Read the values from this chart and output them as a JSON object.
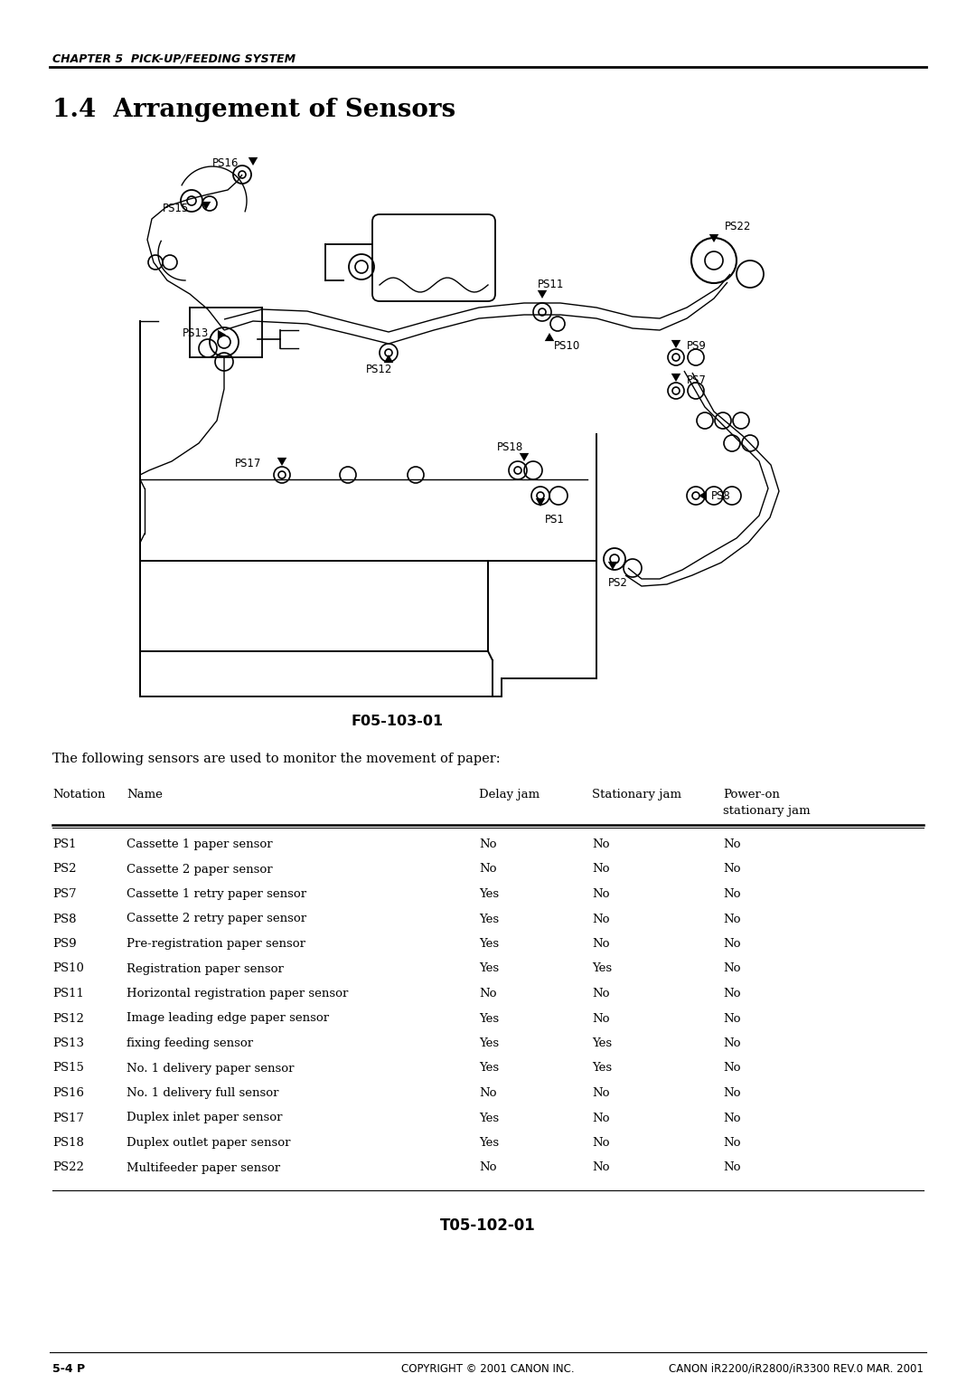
{
  "page_header": "CHAPTER 5  PICK-UP/FEEDING SYSTEM",
  "section_title": "1.4  Arrangement of Sensors",
  "diagram_label": "F05-103-01",
  "intro_text": "The following sensors are used to monitor the movement of paper:",
  "table_headers_line1": [
    "Notation",
    "Name",
    "Delay jam",
    "Stationary jam",
    "Power-on"
  ],
  "table_headers_line2": [
    "",
    "",
    "",
    "",
    "stationary jam"
  ],
  "table_rows": [
    [
      "PS1",
      "Cassette 1 paper sensor",
      "No",
      "No",
      "No"
    ],
    [
      "PS2",
      "Cassette 2 paper sensor",
      "No",
      "No",
      "No"
    ],
    [
      "PS7",
      "Cassette 1 retry paper sensor",
      "Yes",
      "No",
      "No"
    ],
    [
      "PS8",
      "Cassette 2 retry paper sensor",
      "Yes",
      "No",
      "No"
    ],
    [
      "PS9",
      "Pre-registration paper sensor",
      "Yes",
      "No",
      "No"
    ],
    [
      "PS10",
      "Registration paper sensor",
      "Yes",
      "Yes",
      "No"
    ],
    [
      "PS11",
      "Horizontal registration paper sensor",
      "No",
      "No",
      "No"
    ],
    [
      "PS12",
      "Image leading edge paper sensor",
      "Yes",
      "No",
      "No"
    ],
    [
      "PS13",
      "fixing feeding sensor",
      "Yes",
      "Yes",
      "No"
    ],
    [
      "PS15",
      "No. 1 delivery paper sensor",
      "Yes",
      "Yes",
      "No"
    ],
    [
      "PS16",
      "No. 1 delivery full sensor",
      "No",
      "No",
      "No"
    ],
    [
      "PS17",
      "Duplex inlet paper sensor",
      "Yes",
      "No",
      "No"
    ],
    [
      "PS18",
      "Duplex outlet paper sensor",
      "Yes",
      "No",
      "No"
    ],
    [
      "PS22",
      "Multifeeder paper sensor",
      "No",
      "No",
      "No"
    ]
  ],
  "table_label": "T05-102-01",
  "footer_left": "5-4 P",
  "footer_center": "COPYRIGHT © 2001 CANON INC.",
  "footer_right": "CANON iR2200/iR2800/iR3300 REV.0 MAR. 2001",
  "bg_color": "#ffffff",
  "text_color": "#000000"
}
